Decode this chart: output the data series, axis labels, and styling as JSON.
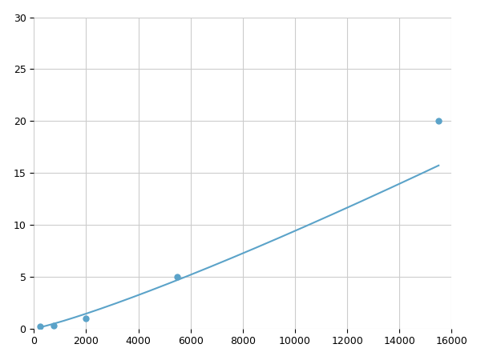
{
  "x": [
    250,
    750,
    2000,
    5500,
    15500
  ],
  "y": [
    0.2,
    0.3,
    1.0,
    5.0,
    20.0
  ],
  "line_color": "#5ba3c9",
  "marker_color": "#5ba3c9",
  "marker_size": 5,
  "line_width": 1.5,
  "xlim": [
    0,
    16000
  ],
  "ylim": [
    0,
    30
  ],
  "xticks": [
    0,
    2000,
    4000,
    6000,
    8000,
    10000,
    12000,
    14000,
    16000
  ],
  "yticks": [
    0,
    5,
    10,
    15,
    20,
    25,
    30
  ],
  "grid_color": "#cccccc",
  "background_color": "#ffffff",
  "figure_bg": "#ffffff"
}
